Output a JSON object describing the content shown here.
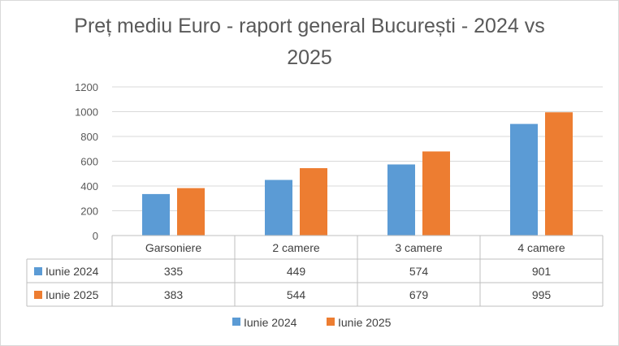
{
  "chart_data": {
    "type": "bar",
    "title_line1": "Preț mediu Euro - raport general București - 2024 vs",
    "title_line2": "2025",
    "categories": [
      "Garsoniere",
      "2 camere",
      "3 camere",
      "4 camere"
    ],
    "series": [
      {
        "name": "Iunie 2024",
        "color": "#5b9bd5",
        "values": [
          335,
          449,
          574,
          901
        ],
        "display": [
          "335",
          "449",
          "574",
          "901"
        ]
      },
      {
        "name": "Iunie 2025",
        "color": "#ed7d31",
        "values": [
          383,
          544,
          679,
          995
        ],
        "display": [
          "383",
          "544",
          "679",
          "995"
        ]
      }
    ],
    "ylim": [
      0,
      1200
    ],
    "yticks": [
      "0",
      "200",
      "400",
      "600",
      "800",
      "1000",
      "1200"
    ],
    "grid": true,
    "data_table": true,
    "legend_position": "bottom"
  }
}
